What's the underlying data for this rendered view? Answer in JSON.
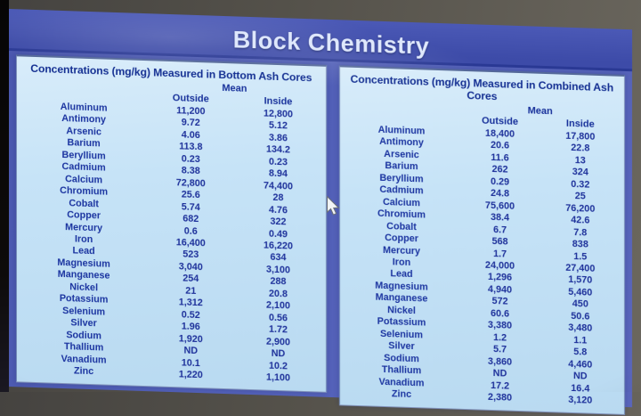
{
  "title": "Block Chemistry",
  "icons": {
    "mouse_cursor": "arrow-pointer"
  },
  "colors": {
    "slide_blue": "#5260b8",
    "title_bar_blue": "#3d4ba8",
    "panel_light_blue": "#c6e3f7",
    "text_navy": "#1b34a0",
    "title_text": "#dfe8fc"
  },
  "left_table": {
    "title": "Concentrations (mg/kg) Measured in Bottom Ash  Cores",
    "mean_label": "Mean",
    "col_outside": "Outside",
    "col_inside": "Inside",
    "rows": [
      {
        "element": "Aluminum",
        "outside": "11,200",
        "inside": "12,800"
      },
      {
        "element": "Antimony",
        "outside": "9.72",
        "inside": "5.12"
      },
      {
        "element": "Arsenic",
        "outside": "4.06",
        "inside": "3.86"
      },
      {
        "element": "Barium",
        "outside": "113.8",
        "inside": "134.2"
      },
      {
        "element": "Beryllium",
        "outside": "0.23",
        "inside": "0.23"
      },
      {
        "element": "Cadmium",
        "outside": "8.38",
        "inside": "8.94"
      },
      {
        "element": "Calcium",
        "outside": "72,800",
        "inside": "74,400"
      },
      {
        "element": "Chromium",
        "outside": "25.6",
        "inside": "28"
      },
      {
        "element": "Cobalt",
        "outside": "5.74",
        "inside": "4.76"
      },
      {
        "element": "Copper",
        "outside": "682",
        "inside": "322"
      },
      {
        "element": "Mercury",
        "outside": "0.6",
        "inside": "0.49"
      },
      {
        "element": "Iron",
        "outside": "16,400",
        "inside": "16,220"
      },
      {
        "element": "Lead",
        "outside": "523",
        "inside": "634"
      },
      {
        "element": "Magnesium",
        "outside": "3,040",
        "inside": "3,100"
      },
      {
        "element": "Manganese",
        "outside": "254",
        "inside": "288"
      },
      {
        "element": "Nickel",
        "outside": "21",
        "inside": "20.8"
      },
      {
        "element": "Potassium",
        "outside": "1,312",
        "inside": "2,100"
      },
      {
        "element": "Selenium",
        "outside": "0.52",
        "inside": "0.56"
      },
      {
        "element": "Silver",
        "outside": "1.96",
        "inside": "1.72"
      },
      {
        "element": "Sodium",
        "outside": "1,920",
        "inside": "2,900"
      },
      {
        "element": "Thallium",
        "outside": "ND",
        "inside": "ND"
      },
      {
        "element": "Vanadium",
        "outside": "10.1",
        "inside": "10.2"
      },
      {
        "element": "Zinc",
        "outside": "1,220",
        "inside": "1,100"
      }
    ]
  },
  "right_table": {
    "title": "Concentrations (mg/kg) Measured in Combined Ash  Cores",
    "mean_label": "Mean",
    "col_outside": "Outside",
    "col_inside": "Inside",
    "rows": [
      {
        "element": "Aluminum",
        "outside": "18,400",
        "inside": "17,800"
      },
      {
        "element": "Antimony",
        "outside": "20.6",
        "inside": "22.8"
      },
      {
        "element": "Arsenic",
        "outside": "11.6",
        "inside": "13"
      },
      {
        "element": "Barium",
        "outside": "262",
        "inside": "324"
      },
      {
        "element": "Beryllium",
        "outside": "0.29",
        "inside": "0.32"
      },
      {
        "element": "Cadmium",
        "outside": "24.8",
        "inside": "25"
      },
      {
        "element": "Calcium",
        "outside": "75,600",
        "inside": "76,200"
      },
      {
        "element": "Chromium",
        "outside": "38.4",
        "inside": "42.6"
      },
      {
        "element": "Cobalt",
        "outside": "6.7",
        "inside": "7.8"
      },
      {
        "element": "Copper",
        "outside": "568",
        "inside": "838"
      },
      {
        "element": "Mercury",
        "outside": "1.7",
        "inside": "1.5"
      },
      {
        "element": "Iron",
        "outside": "24,000",
        "inside": "27,400"
      },
      {
        "element": "Lead",
        "outside": "1,296",
        "inside": "1,570"
      },
      {
        "element": "Magnesium",
        "outside": "4,940",
        "inside": "5,460"
      },
      {
        "element": "Manganese",
        "outside": "572",
        "inside": "450"
      },
      {
        "element": "Nickel",
        "outside": "60.6",
        "inside": "50.6"
      },
      {
        "element": "Potassium",
        "outside": "3,380",
        "inside": "3,480"
      },
      {
        "element": "Selenium",
        "outside": "1.2",
        "inside": "1.1"
      },
      {
        "element": "Silver",
        "outside": "5.7",
        "inside": "5.8"
      },
      {
        "element": "Sodium",
        "outside": "3,860",
        "inside": "4,460"
      },
      {
        "element": "Thallium",
        "outside": "ND",
        "inside": "ND"
      },
      {
        "element": "Vanadium",
        "outside": "17.2",
        "inside": "16.4"
      },
      {
        "element": "Zinc",
        "outside": "2,380",
        "inside": "3,120"
      }
    ]
  }
}
